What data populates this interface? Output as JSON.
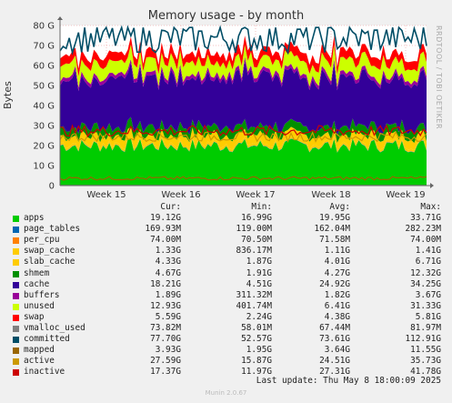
{
  "chart_data": {
    "type": "area",
    "title": "Memory usage - by month",
    "ylabel": "Bytes",
    "yunit": "G",
    "ylim": [
      0,
      80
    ],
    "yticks": [
      0,
      10,
      20,
      30,
      40,
      50,
      60,
      70,
      80
    ],
    "ytick_labels": [
      "0",
      "10 G",
      "20 G",
      "30 G",
      "40 G",
      "50 G",
      "60 G",
      "70 G",
      "80 G"
    ],
    "xticks": [
      "Week 15",
      "Week 16",
      "Week 17",
      "Week 18",
      "Week 19"
    ],
    "grid": true,
    "legend_position": "bottom",
    "columns": [
      "Cur:",
      "Min:",
      "Avg:",
      "Max:"
    ],
    "series": [
      {
        "name": "apps",
        "color": "#00cc00",
        "cur": "19.12G",
        "min": "16.99G",
        "avg": "19.95G",
        "max": "33.71G",
        "mean": 19.95,
        "style": "area"
      },
      {
        "name": "page_tables",
        "color": "#0066b3",
        "cur": "169.93M",
        "min": "119.00M",
        "avg": "162.04M",
        "max": "282.23M",
        "mean": 0.16,
        "style": "area"
      },
      {
        "name": "per_cpu",
        "color": "#ff8000",
        "cur": "74.00M",
        "min": "70.50M",
        "avg": "71.58M",
        "max": "74.00M",
        "mean": 0.07,
        "style": "area"
      },
      {
        "name": "swap_cache",
        "color": "#ffcc00",
        "cur": "1.33G",
        "min": "836.17M",
        "avg": "1.11G",
        "max": "1.41G",
        "mean": 1.11,
        "style": "area"
      },
      {
        "name": "slab_cache",
        "color": "#ffcc00",
        "cur": "4.33G",
        "min": "1.87G",
        "avg": "4.01G",
        "max": "6.71G",
        "mean": 4.01,
        "style": "area"
      },
      {
        "name": "shmem",
        "color": "#008f00",
        "cur": "4.67G",
        "min": "1.91G",
        "avg": "4.27G",
        "max": "12.32G",
        "mean": 4.27,
        "style": "area"
      },
      {
        "name": "cache",
        "color": "#330099",
        "cur": "18.21G",
        "min": "4.51G",
        "avg": "24.92G",
        "max": "34.25G",
        "mean": 24.92,
        "style": "area"
      },
      {
        "name": "buffers",
        "color": "#990099",
        "cur": "1.89G",
        "min": "311.32M",
        "avg": "1.82G",
        "max": "3.67G",
        "mean": 1.82,
        "style": "area"
      },
      {
        "name": "unused",
        "color": "#ccff00",
        "cur": "12.93G",
        "min": "401.74M",
        "avg": "6.41G",
        "max": "31.33G",
        "mean": 6.41,
        "style": "area"
      },
      {
        "name": "swap",
        "color": "#ff0000",
        "cur": "5.59G",
        "min": "2.24G",
        "avg": "4.38G",
        "max": "5.81G",
        "mean": 4.38,
        "style": "area"
      },
      {
        "name": "vmalloc_used",
        "color": "#808080",
        "cur": "73.82M",
        "min": "58.01M",
        "avg": "67.44M",
        "max": "81.97M",
        "mean": 0.07,
        "style": "line"
      },
      {
        "name": "committed",
        "color": "#004d66",
        "cur": "77.70G",
        "min": "52.57G",
        "avg": "73.61G",
        "max": "112.91G",
        "mean": 73.61,
        "style": "line"
      },
      {
        "name": "mapped",
        "color": "#996600",
        "cur": "3.93G",
        "min": "1.95G",
        "avg": "3.64G",
        "max": "11.55G",
        "mean": 3.64,
        "style": "line"
      },
      {
        "name": "active",
        "color": "#cc9900",
        "cur": "27.59G",
        "min": "15.87G",
        "avg": "24.51G",
        "max": "35.73G",
        "mean": 24.51,
        "style": "line"
      },
      {
        "name": "inactive",
        "color": "#cc0000",
        "cur": "17.37G",
        "min": "11.97G",
        "avg": "27.31G",
        "max": "41.78G",
        "mean": 27.31,
        "style": "line"
      }
    ]
  },
  "vendor": "RRDTOOL / TOBI OETIKER",
  "last_update": "Last update:  Thu May  8 18:00:09 2025",
  "generator": "Munin 2.0.67"
}
